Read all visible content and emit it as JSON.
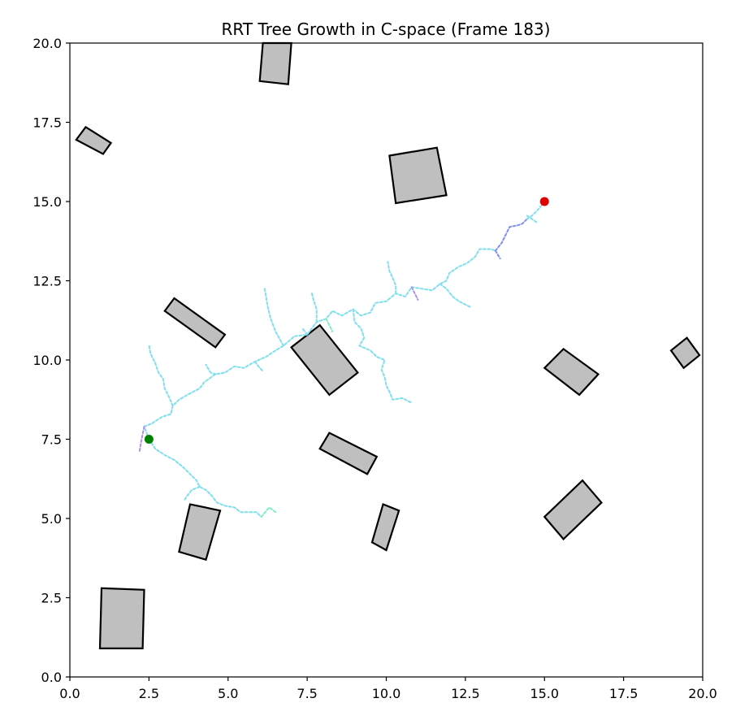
{
  "chart_data": {
    "type": "scatter",
    "title": "RRT Tree Growth in C-space (Frame 183)",
    "xlabel": "",
    "ylabel": "",
    "xlim": [
      0,
      20
    ],
    "ylim": [
      0,
      20
    ],
    "xticks": [
      "0.0",
      "2.5",
      "5.0",
      "7.5",
      "10.0",
      "12.5",
      "15.0",
      "17.5",
      "20.0"
    ],
    "yticks": [
      "0.0",
      "2.5",
      "5.0",
      "7.5",
      "10.0",
      "12.5",
      "15.0",
      "17.5",
      "20.0"
    ],
    "grid": false,
    "legend": "none",
    "start": {
      "x": 2.5,
      "y": 7.5,
      "color": "#008000"
    },
    "goal": {
      "x": 15.0,
      "y": 15.0,
      "color": "#e00000"
    },
    "obstacle_color": "#bfbfbf",
    "obstacles": [
      [
        [
          6.0,
          18.8
        ],
        [
          6.1,
          20.0
        ],
        [
          7.0,
          20.0
        ],
        [
          6.9,
          18.7
        ]
      ],
      [
        [
          0.2,
          16.95
        ],
        [
          0.5,
          17.35
        ],
        [
          1.3,
          16.85
        ],
        [
          1.05,
          16.5
        ]
      ],
      [
        [
          10.1,
          16.45
        ],
        [
          11.6,
          16.7
        ],
        [
          11.9,
          15.2
        ],
        [
          10.3,
          14.95
        ]
      ],
      [
        [
          3.0,
          11.55
        ],
        [
          3.3,
          11.95
        ],
        [
          4.9,
          10.8
        ],
        [
          4.6,
          10.4
        ]
      ],
      [
        [
          7.0,
          10.4
        ],
        [
          7.9,
          11.1
        ],
        [
          9.1,
          9.6
        ],
        [
          8.2,
          8.9
        ]
      ],
      [
        [
          15.0,
          9.75
        ],
        [
          15.6,
          10.35
        ],
        [
          16.7,
          9.55
        ],
        [
          16.1,
          8.9
        ]
      ],
      [
        [
          19.0,
          10.3
        ],
        [
          19.5,
          10.7
        ],
        [
          19.9,
          10.15
        ],
        [
          19.4,
          9.75
        ]
      ],
      [
        [
          7.9,
          7.2
        ],
        [
          8.2,
          7.7
        ],
        [
          9.7,
          6.95
        ],
        [
          9.4,
          6.4
        ]
      ],
      [
        [
          3.45,
          3.95
        ],
        [
          3.8,
          5.45
        ],
        [
          4.75,
          5.25
        ],
        [
          4.3,
          3.7
        ]
      ],
      [
        [
          9.55,
          4.25
        ],
        [
          9.9,
          5.45
        ],
        [
          10.4,
          5.25
        ],
        [
          10.0,
          4.0
        ]
      ],
      [
        [
          15.0,
          5.05
        ],
        [
          15.6,
          4.35
        ],
        [
          16.8,
          5.5
        ],
        [
          16.2,
          6.2
        ]
      ],
      [
        [
          0.95,
          0.9
        ],
        [
          1.0,
          2.8
        ],
        [
          2.35,
          2.75
        ],
        [
          2.3,
          0.9
        ]
      ]
    ],
    "tree_branches": [
      {
        "color": "#7fdfee",
        "points": [
          [
            2.5,
            7.5
          ],
          [
            2.35,
            7.9
          ],
          [
            2.6,
            8.0
          ],
          [
            2.9,
            8.2
          ],
          [
            3.2,
            8.3
          ],
          [
            3.25,
            8.55
          ],
          [
            3.45,
            8.75
          ],
          [
            3.8,
            8.95
          ],
          [
            4.1,
            9.1
          ],
          [
            4.25,
            9.3
          ],
          [
            4.6,
            9.55
          ],
          [
            4.9,
            9.6
          ],
          [
            5.2,
            9.8
          ],
          [
            5.5,
            9.75
          ],
          [
            5.85,
            9.95
          ],
          [
            6.2,
            10.1
          ],
          [
            6.5,
            10.3
          ],
          [
            6.75,
            10.45
          ],
          [
            7.1,
            10.75
          ],
          [
            7.5,
            10.8
          ],
          [
            7.8,
            11.2
          ],
          [
            8.1,
            11.3
          ],
          [
            8.3,
            11.55
          ],
          [
            8.6,
            11.4
          ],
          [
            8.95,
            11.6
          ],
          [
            9.2,
            11.4
          ],
          [
            9.5,
            11.5
          ],
          [
            9.65,
            11.8
          ],
          [
            10.0,
            11.85
          ],
          [
            10.3,
            12.1
          ],
          [
            10.6,
            12.0
          ],
          [
            10.8,
            12.3
          ],
          [
            11.1,
            12.25
          ],
          [
            11.45,
            12.2
          ],
          [
            11.7,
            12.4
          ],
          [
            11.9,
            12.5
          ],
          [
            12.0,
            12.75
          ],
          [
            12.3,
            12.95
          ],
          [
            12.55,
            13.05
          ],
          [
            12.8,
            13.25
          ],
          [
            12.95,
            13.5
          ],
          [
            13.3,
            13.5
          ],
          [
            13.45,
            13.45
          ]
        ]
      },
      {
        "color": "#7f8fee",
        "points": [
          [
            13.45,
            13.45
          ],
          [
            13.65,
            13.7
          ],
          [
            13.8,
            14.0
          ],
          [
            13.9,
            14.2
          ],
          [
            14.15,
            14.25
          ],
          [
            14.3,
            14.3
          ],
          [
            14.45,
            14.45
          ]
        ]
      },
      {
        "color": "#7fdfee",
        "points": [
          [
            14.45,
            14.45
          ],
          [
            14.6,
            14.55
          ],
          [
            14.8,
            14.75
          ],
          [
            15.0,
            15.0
          ]
        ]
      },
      {
        "color": "#7f8fee",
        "points": [
          [
            13.45,
            13.45
          ],
          [
            13.6,
            13.2
          ]
        ]
      },
      {
        "color": "#7fdfee",
        "points": [
          [
            14.45,
            14.55
          ],
          [
            14.75,
            14.35
          ]
        ]
      },
      {
        "color": "#7fdfee",
        "points": [
          [
            2.5,
            7.5
          ],
          [
            2.7,
            7.2
          ],
          [
            3.0,
            7.0
          ],
          [
            3.3,
            6.85
          ],
          [
            3.6,
            6.6
          ],
          [
            3.8,
            6.4
          ],
          [
            4.0,
            6.2
          ],
          [
            4.1,
            6.0
          ],
          [
            4.3,
            5.9
          ],
          [
            4.5,
            5.7
          ],
          [
            4.65,
            5.5
          ],
          [
            4.9,
            5.4
          ],
          [
            5.2,
            5.35
          ],
          [
            5.4,
            5.2
          ],
          [
            5.7,
            5.2
          ],
          [
            5.9,
            5.2
          ],
          [
            6.05,
            5.05
          ]
        ]
      },
      {
        "color": "#7feebf",
        "points": [
          [
            6.05,
            5.05
          ],
          [
            6.3,
            5.35
          ],
          [
            6.5,
            5.2
          ]
        ]
      },
      {
        "color": "#7fdfee",
        "points": [
          [
            4.1,
            6.0
          ],
          [
            3.85,
            5.9
          ],
          [
            3.7,
            5.7
          ],
          [
            3.6,
            5.55
          ]
        ]
      },
      {
        "color": "#af8fee",
        "points": [
          [
            2.35,
            7.9
          ],
          [
            2.25,
            7.4
          ],
          [
            2.2,
            7.1
          ]
        ]
      },
      {
        "color": "#7fdfee",
        "points": [
          [
            3.25,
            8.55
          ],
          [
            3.15,
            8.8
          ],
          [
            3.0,
            9.1
          ],
          [
            2.95,
            9.4
          ],
          [
            2.8,
            9.6
          ],
          [
            2.7,
            9.9
          ],
          [
            2.55,
            10.2
          ],
          [
            2.5,
            10.5
          ]
        ]
      },
      {
        "color": "#7fdfee",
        "points": [
          [
            4.6,
            9.55
          ],
          [
            4.45,
            9.6
          ],
          [
            4.3,
            9.85
          ]
        ]
      },
      {
        "color": "#7fdfee",
        "points": [
          [
            5.85,
            9.95
          ],
          [
            6.0,
            9.75
          ],
          [
            6.1,
            9.65
          ]
        ]
      },
      {
        "color": "#7fdfee",
        "points": [
          [
            6.75,
            10.45
          ],
          [
            6.5,
            10.9
          ],
          [
            6.35,
            11.3
          ],
          [
            6.25,
            11.7
          ],
          [
            6.2,
            12.0
          ],
          [
            6.15,
            12.3
          ]
        ]
      },
      {
        "color": "#7fdfee",
        "points": [
          [
            7.8,
            11.2
          ],
          [
            7.8,
            11.6
          ],
          [
            7.7,
            11.9
          ],
          [
            7.65,
            12.1
          ]
        ]
      },
      {
        "color": "#7fdfee",
        "points": [
          [
            7.5,
            10.8
          ],
          [
            7.35,
            11.0
          ]
        ]
      },
      {
        "color": "#7feebf",
        "points": [
          [
            8.1,
            11.3
          ],
          [
            8.3,
            10.9
          ]
        ]
      },
      {
        "color": "#7fdfee",
        "points": [
          [
            8.95,
            11.6
          ],
          [
            9.0,
            11.2
          ],
          [
            9.2,
            11.0
          ],
          [
            9.3,
            10.7
          ],
          [
            9.15,
            10.45
          ],
          [
            9.5,
            10.3
          ],
          [
            9.7,
            10.1
          ],
          [
            9.95,
            10.0
          ],
          [
            9.85,
            9.7
          ],
          [
            9.95,
            9.45
          ],
          [
            10.0,
            9.2
          ],
          [
            10.1,
            9.0
          ],
          [
            10.2,
            8.75
          ],
          [
            10.5,
            8.8
          ],
          [
            10.8,
            8.65
          ]
        ]
      },
      {
        "color": "#7fdfee",
        "points": [
          [
            10.3,
            12.1
          ],
          [
            10.3,
            12.35
          ],
          [
            10.2,
            12.6
          ],
          [
            10.1,
            12.8
          ],
          [
            10.05,
            13.1
          ]
        ]
      },
      {
        "color": "#af8fee",
        "points": [
          [
            10.8,
            12.3
          ],
          [
            10.9,
            12.1
          ],
          [
            11.0,
            11.9
          ]
        ]
      },
      {
        "color": "#7fdfee",
        "points": [
          [
            11.7,
            12.4
          ],
          [
            11.9,
            12.25
          ],
          [
            12.1,
            12.0
          ],
          [
            12.3,
            11.85
          ],
          [
            12.5,
            11.75
          ],
          [
            12.7,
            11.65
          ]
        ]
      }
    ]
  }
}
